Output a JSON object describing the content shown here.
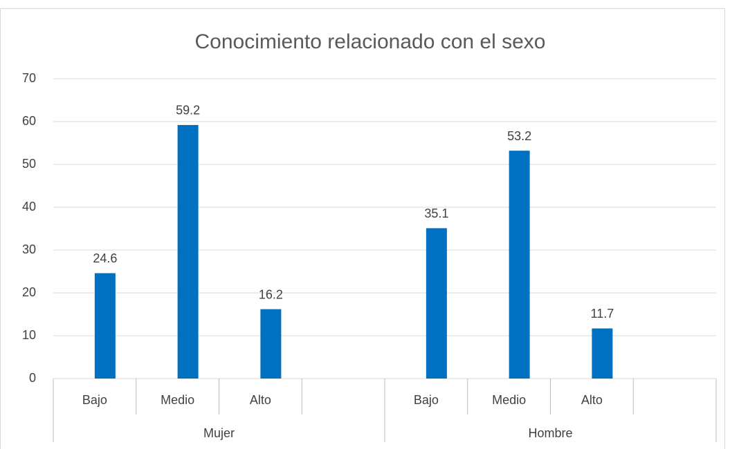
{
  "chart_data": {
    "type": "bar",
    "title": "Conocimiento relacionado con el sexo",
    "categories": [
      "Bajo",
      "Medio",
      "Alto",
      null,
      "Bajo",
      "Medio",
      "Alto",
      null
    ],
    "groups": [
      "Mujer",
      "Hombre"
    ],
    "values": [
      24.6,
      59.2,
      16.2,
      null,
      35.1,
      53.2,
      11.7,
      null
    ],
    "color": "#0070c0",
    "ylim": [
      0,
      70
    ],
    "yticks": [
      0,
      10,
      20,
      30,
      40,
      50,
      60,
      70
    ],
    "grid": true
  }
}
